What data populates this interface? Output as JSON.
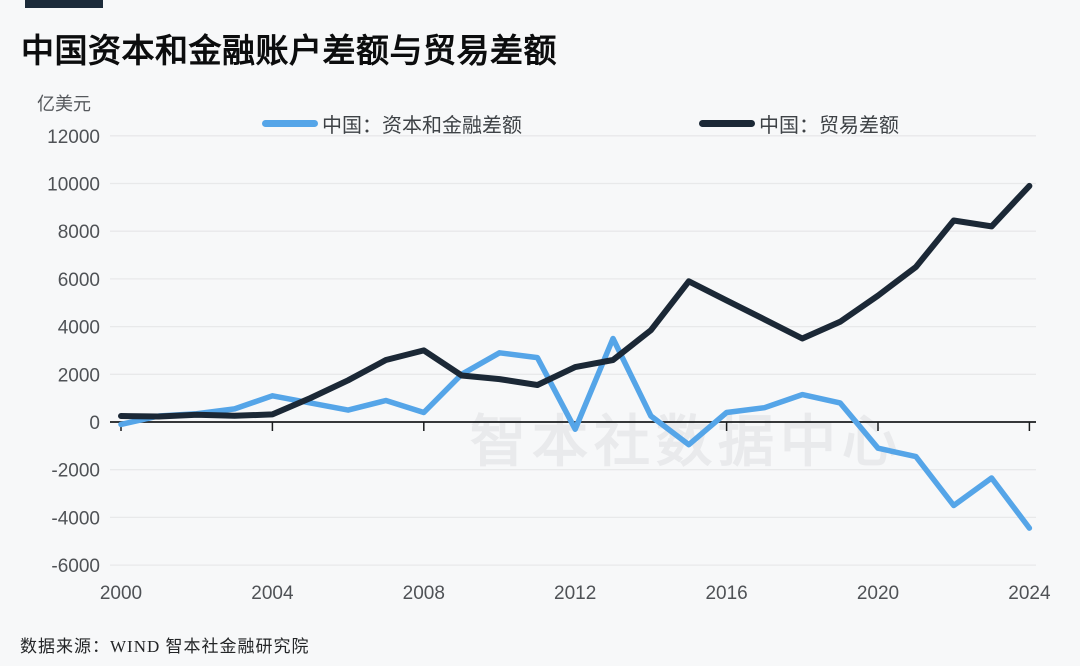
{
  "title": "中国资本和金融账户差额与贸易差额",
  "unit_label": "亿美元",
  "watermark": "智本社数据中心",
  "source": "数据来源：WIND 智本社金融研究院",
  "colors": {
    "background": "#f7f8f9",
    "accent_bar": "#1c2b3a",
    "capital_line": "#55a5e8",
    "trade_line": "#1b2836",
    "gridline": "#e8e9ea",
    "zero_axis": "#1a1c1e",
    "tick_label": "#4f5256",
    "watermark": "#e9eaec"
  },
  "chart_data": {
    "type": "line",
    "x": [
      2000,
      2001,
      2002,
      2003,
      2004,
      2005,
      2006,
      2007,
      2008,
      2009,
      2010,
      2011,
      2012,
      2013,
      2014,
      2015,
      2016,
      2017,
      2018,
      2019,
      2020,
      2021,
      2022,
      2023,
      2024
    ],
    "series": [
      {
        "name": "中国：资本和金融差额",
        "color": "#55a5e8",
        "values": [
          -100,
          250,
          350,
          550,
          1100,
          800,
          500,
          900,
          400,
          2000,
          2900,
          2700,
          -300,
          3500,
          250,
          -950,
          400,
          600,
          1150,
          800,
          -1100,
          -1450,
          -3500,
          -2350,
          -4450
        ]
      },
      {
        "name": "中国：贸易差额",
        "color": "#1b2836",
        "values": [
          250,
          230,
          300,
          260,
          320,
          1000,
          1750,
          2600,
          3000,
          1950,
          1800,
          1550,
          2300,
          2600,
          3850,
          5900,
          5100,
          4300,
          3500,
          4200,
          5300,
          6500,
          8450,
          8200,
          9900
        ]
      }
    ],
    "title": "中国资本和金融账户差额与贸易差额",
    "xlabel": "",
    "ylabel": "亿美元",
    "ylim": [
      -6000,
      12000
    ],
    "y_ticks": [
      12000,
      10000,
      8000,
      6000,
      4000,
      2000,
      0,
      -2000,
      -4000,
      -6000
    ],
    "x_ticks": [
      2000,
      2004,
      2008,
      2012,
      2016,
      2020,
      2024
    ],
    "grid": true,
    "legend_position": "top"
  }
}
